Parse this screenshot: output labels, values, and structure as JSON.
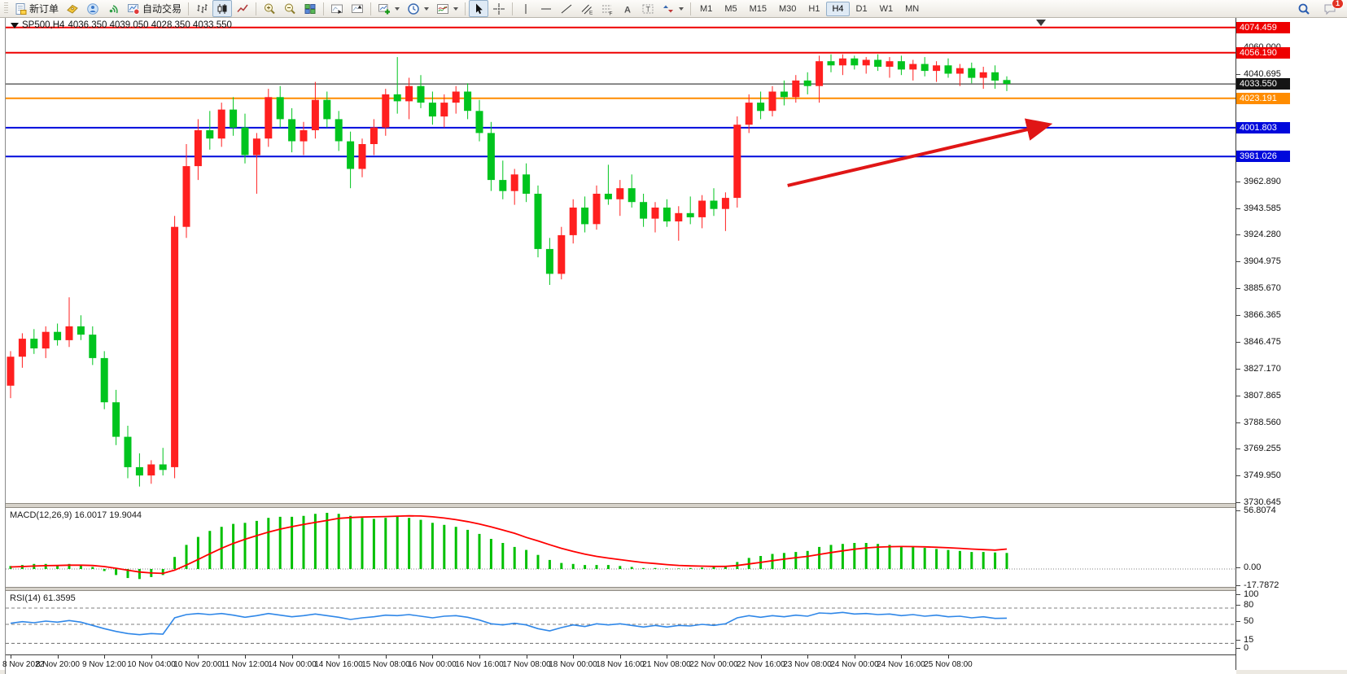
{
  "toolbar": {
    "new_order": "新订单",
    "auto_trading": "自动交易",
    "timeframes": [
      "M1",
      "M5",
      "M15",
      "M30",
      "H1",
      "H4",
      "D1",
      "W1",
      "MN"
    ],
    "active_timeframe": "H4",
    "notification_count": "1"
  },
  "chart": {
    "symbol_period": "SP500,H4",
    "ohlc_text": "4036.350 4039.050 4028.350 4033.550",
    "macd_label": "MACD(12,26,9) 16.0017 19.9044",
    "rsi_label": "RSI(14) 61.3595"
  },
  "chart_data": {
    "type": "candlestick",
    "symbol": "SP500",
    "timeframe": "H4",
    "up_color": "#ff1f1f",
    "down_color": "#00c41e",
    "y_axis": {
      "ticks": [
        "4060.000",
        "4040.695",
        "3962.890",
        "3943.585",
        "3924.280",
        "3904.975",
        "3885.670",
        "3866.365",
        "3846.475",
        "3827.170",
        "3807.865",
        "3788.560",
        "3769.255",
        "3749.950",
        "3730.645"
      ]
    },
    "x_axis": {
      "bars_per_label": 4,
      "labels": [
        "8 Nov 2022",
        "8 Nov 20:00",
        "9 Nov 12:00",
        "10 Nov 04:00",
        "10 Nov 20:00",
        "11 Nov 12:00",
        "14 Nov 00:00",
        "14 Nov 16:00",
        "15 Nov 08:00",
        "16 Nov 00:00",
        "16 Nov 16:00",
        "17 Nov 08:00",
        "18 Nov 00:00",
        "18 Nov 16:00",
        "21 Nov 08:00",
        "22 Nov 00:00",
        "22 Nov 16:00",
        "23 Nov 08:00",
        "24 Nov 00:00",
        "24 Nov 16:00",
        "25 Nov 08:00"
      ]
    },
    "levels": [
      {
        "price": "4074.459",
        "color": "#ee0000",
        "current": false
      },
      {
        "price": "4056.190",
        "color": "#ee0000",
        "current": false
      },
      {
        "price": "4033.550",
        "color": "#141414",
        "current": true
      },
      {
        "price": "4023.191",
        "color": "#ff8c00",
        "current": false
      },
      {
        "price": "4001.803",
        "color": "#0008dc",
        "current": false
      },
      {
        "price": "3981.026",
        "color": "#0008dc",
        "current": false
      }
    ],
    "trend_arrow": {
      "from_bar": 66.3,
      "from_price": 3960,
      "to_bar": 88.5,
      "to_price": 4004,
      "color": "#e01616"
    },
    "candles": [
      [
        3815,
        3840,
        3806,
        3836
      ],
      [
        3836,
        3853,
        3828,
        3849
      ],
      [
        3849,
        3856,
        3838,
        3842
      ],
      [
        3842,
        3858,
        3835,
        3854
      ],
      [
        3854,
        3860,
        3844,
        3848
      ],
      [
        3848,
        3879,
        3843,
        3858
      ],
      [
        3858,
        3866,
        3848,
        3852
      ],
      [
        3852,
        3858,
        3830,
        3835
      ],
      [
        3835,
        3840,
        3798,
        3803
      ],
      [
        3803,
        3812,
        3772,
        3778
      ],
      [
        3778,
        3786,
        3748,
        3756
      ],
      [
        3756,
        3766,
        3742,
        3750
      ],
      [
        3750,
        3761,
        3744,
        3758
      ],
      [
        3758,
        3770,
        3750,
        3754
      ],
      [
        3756,
        3938,
        3748,
        3930
      ],
      [
        3930,
        3990,
        3922,
        3974
      ],
      [
        3974,
        4008,
        3964,
        4000
      ],
      [
        4000,
        4014,
        3986,
        3994
      ],
      [
        3994,
        4020,
        3988,
        4015
      ],
      [
        4015,
        4024,
        3996,
        4002
      ],
      [
        4002,
        4012,
        3976,
        3982
      ],
      [
        3982,
        3998,
        3954,
        3994
      ],
      [
        3994,
        4030,
        3988,
        4024
      ],
      [
        4024,
        4032,
        4002,
        4008
      ],
      [
        4008,
        4016,
        3984,
        3992
      ],
      [
        3992,
        4006,
        3982,
        4000
      ],
      [
        4000,
        4035,
        3994,
        4022
      ],
      [
        4022,
        4028,
        4002,
        4008
      ],
      [
        4008,
        4014,
        3985,
        3992
      ],
      [
        3992,
        3999,
        3958,
        3972
      ],
      [
        3972,
        3994,
        3966,
        3990
      ],
      [
        3990,
        4008,
        3982,
        4002
      ],
      [
        4002,
        4030,
        3996,
        4026
      ],
      [
        4026,
        4053,
        4012,
        4021
      ],
      [
        4021,
        4038,
        4008,
        4032
      ],
      [
        4032,
        4040,
        4016,
        4020
      ],
      [
        4020,
        4028,
        4004,
        4010
      ],
      [
        4010,
        4026,
        4002,
        4020
      ],
      [
        4020,
        4032,
        4012,
        4028
      ],
      [
        4028,
        4034,
        4008,
        4014
      ],
      [
        4014,
        4022,
        3992,
        3998
      ],
      [
        3998,
        4006,
        3956,
        3964
      ],
      [
        3964,
        3978,
        3950,
        3956
      ],
      [
        3956,
        3972,
        3946,
        3968
      ],
      [
        3968,
        3976,
        3948,
        3954
      ],
      [
        3954,
        3960,
        3908,
        3914
      ],
      [
        3914,
        3922,
        3888,
        3896
      ],
      [
        3896,
        3930,
        3892,
        3924
      ],
      [
        3924,
        3950,
        3918,
        3944
      ],
      [
        3944,
        3952,
        3926,
        3932
      ],
      [
        3932,
        3960,
        3928,
        3954
      ],
      [
        3954,
        3975,
        3946,
        3950
      ],
      [
        3950,
        3964,
        3938,
        3958
      ],
      [
        3958,
        3968,
        3944,
        3948
      ],
      [
        3948,
        3954,
        3930,
        3936
      ],
      [
        3936,
        3948,
        3926,
        3944
      ],
      [
        3944,
        3950,
        3930,
        3934
      ],
      [
        3934,
        3945,
        3920,
        3940
      ],
      [
        3940,
        3952,
        3932,
        3937
      ],
      [
        3937,
        3953,
        3929,
        3949
      ],
      [
        3949,
        3958,
        3938,
        3943
      ],
      [
        3943,
        3955,
        3927,
        3951
      ],
      [
        3951,
        4010,
        3944,
        4004
      ],
      [
        4004,
        4026,
        3998,
        4020
      ],
      [
        4020,
        4028,
        4008,
        4014
      ],
      [
        4014,
        4032,
        4010,
        4028
      ],
      [
        4028,
        4036,
        4018,
        4024
      ],
      [
        4024,
        4040,
        4020,
        4036
      ],
      [
        4036,
        4042,
        4026,
        4032
      ],
      [
        4032,
        4054,
        4020,
        4050
      ],
      [
        4050,
        4055,
        4042,
        4047
      ],
      [
        4047,
        4055,
        4040,
        4052
      ],
      [
        4052,
        4054,
        4044,
        4047
      ],
      [
        4047,
        4053,
        4041,
        4051
      ],
      [
        4051,
        4055,
        4043,
        4046
      ],
      [
        4046,
        4053,
        4038,
        4050
      ],
      [
        4050,
        4054,
        4040,
        4044
      ],
      [
        4044,
        4051,
        4036,
        4048
      ],
      [
        4048,
        4053,
        4039,
        4043
      ],
      [
        4043,
        4050,
        4035,
        4047
      ],
      [
        4047,
        4052,
        4038,
        4041
      ],
      [
        4041,
        4048,
        4032,
        4045
      ],
      [
        4045,
        4049,
        4034,
        4038
      ],
      [
        4038,
        4046,
        4030,
        4042
      ],
      [
        4042,
        4047,
        4030,
        4036
      ],
      [
        4036.35,
        4039.05,
        4028.35,
        4033.55
      ]
    ],
    "indicators": [
      {
        "name": "MACD",
        "params": "12,26,9",
        "hist_color": "#00c000",
        "signal_color": "#ff0000",
        "range": [
          -17.7872,
          56.8074
        ],
        "axis_labels": [
          {
            "v": 56.8074,
            "t": "56.8074"
          },
          {
            "v": 0,
            "t": "0.00"
          },
          {
            "v": -17.7872,
            "t": "-17.7872"
          }
        ],
        "values": [
          3,
          4,
          5,
          5,
          4,
          5,
          4,
          2,
          -2,
          -6,
          -9,
          -10,
          -8,
          -6,
          12,
          24,
          32,
          38,
          42,
          45,
          46,
          48,
          51,
          52,
          52,
          53,
          55,
          56,
          55,
          53,
          51,
          50,
          51,
          52,
          51,
          49,
          46,
          44,
          42,
          39,
          35,
          30,
          26,
          22,
          19,
          14,
          9,
          6,
          5,
          4,
          4,
          4,
          3,
          2,
          1,
          1,
          0.5,
          0.5,
          1,
          1.5,
          2,
          2.5,
          7,
          11,
          13,
          15,
          16,
          17,
          18,
          22,
          24,
          25,
          26,
          26,
          25,
          24,
          23,
          22,
          21,
          20,
          19,
          18,
          17,
          17,
          16.5,
          16
        ],
        "signal": [
          2,
          2.4,
          2.9,
          3.3,
          3.5,
          3.8,
          3.8,
          3.5,
          2.4,
          0.7,
          -1.2,
          -3,
          -4,
          -4.4,
          -1.1,
          3.9,
          9.5,
          15.2,
          20.6,
          25.5,
          29.6,
          33.3,
          36.8,
          39.8,
          42.2,
          44.4,
          46.5,
          48.4,
          50.5,
          51.3,
          51.8,
          52,
          52.3,
          52.7,
          53,
          52.8,
          52,
          50.8,
          49.2,
          47.2,
          44.8,
          42,
          38.9,
          35.6,
          31.5,
          28,
          24.2,
          20.6,
          17.5,
          14.8,
          12.6,
          10.9,
          9.3,
          7.8,
          6.4,
          5.4,
          4.4,
          3.6,
          3.1,
          2.8,
          2.6,
          2.6,
          3.5,
          5,
          6.6,
          8.3,
          9.8,
          11.3,
          12.6,
          14.5,
          16.4,
          18.1,
          19.7,
          21,
          21.8,
          22.2,
          22.4,
          22.3,
          22.1,
          21.7,
          21.2,
          20.6,
          19.9,
          19.3,
          18.8,
          19.9
        ]
      },
      {
        "name": "RSI",
        "params": "14",
        "color": "#2f87e8",
        "levels": [
          80,
          50,
          15
        ],
        "axis_labels": [
          {
            "v": 100,
            "t": "100"
          },
          {
            "v": 80,
            "t": "80"
          },
          {
            "v": 50,
            "t": "50"
          },
          {
            "v": 15,
            "t": "15"
          },
          {
            "v": 0,
            "t": "0"
          }
        ],
        "values": [
          52,
          55,
          53,
          56,
          54,
          57,
          54,
          48,
          42,
          37,
          33,
          31,
          33,
          32,
          62,
          68,
          70,
          68,
          70,
          67,
          63,
          66,
          70,
          67,
          64,
          66,
          69,
          66,
          63,
          59,
          62,
          64,
          67,
          66,
          68,
          65,
          62,
          65,
          66,
          63,
          58,
          51,
          49,
          52,
          49,
          42,
          38,
          44,
          49,
          46,
          51,
          49,
          51,
          48,
          45,
          48,
          45,
          48,
          47,
          50,
          48,
          51,
          62,
          66,
          63,
          66,
          64,
          67,
          65,
          71,
          70,
          72,
          69,
          70,
          68,
          69,
          66,
          68,
          65,
          67,
          64,
          65,
          62,
          64,
          61,
          61.4
        ]
      }
    ]
  }
}
